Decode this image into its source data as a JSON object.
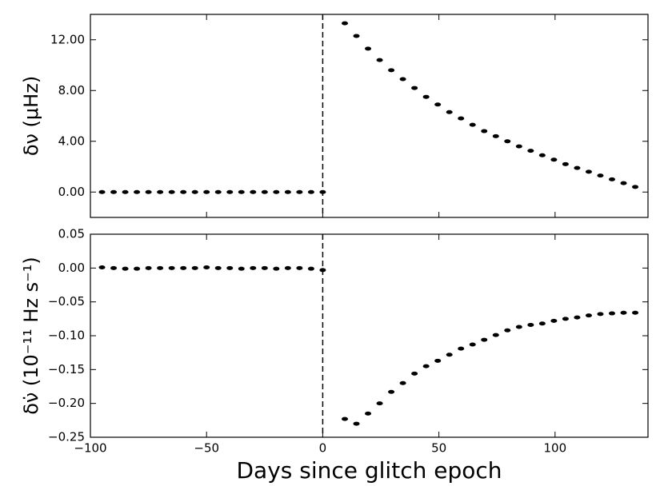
{
  "chart_data": [
    {
      "type": "scatter",
      "ylabel": "δν (μHz)",
      "color": "#000000",
      "x": [
        -95,
        -90,
        -85,
        -80,
        -75,
        -70,
        -65,
        -60,
        -55,
        -50,
        -45,
        -40,
        -35,
        -30,
        -25,
        -20,
        -15,
        -10,
        -5,
        0,
        9.5,
        14.5,
        19.5,
        24.5,
        29.5,
        34.5,
        39.5,
        44.5,
        49.5,
        54.5,
        59.5,
        64.5,
        69.5,
        74.5,
        79.5,
        84.5,
        89.5,
        94.5,
        99.5,
        104.5,
        109.5,
        114.5,
        119.5,
        124.5,
        129.5,
        134.5
      ],
      "values": [
        0,
        0,
        0,
        0,
        0,
        0,
        0,
        0,
        0,
        0,
        0,
        0,
        0,
        0,
        0,
        0,
        0,
        0,
        0,
        0,
        13.3,
        12.3,
        11.3,
        10.4,
        9.6,
        8.9,
        8.2,
        7.5,
        6.9,
        6.3,
        5.8,
        5.3,
        4.8,
        4.4,
        4.0,
        3.6,
        3.25,
        2.9,
        2.55,
        2.2,
        1.9,
        1.6,
        1.3,
        1.0,
        0.7,
        0.4
      ],
      "xlim": [
        -100,
        140
      ],
      "xticks": [
        -100,
        -50,
        0,
        50,
        100
      ],
      "xtick_labels": false,
      "ylim": [
        -2,
        14
      ],
      "yticks": [
        {
          "value": 0,
          "label": "0.00"
        },
        {
          "value": 4,
          "label": "4.00"
        },
        {
          "value": 8,
          "label": "8.00"
        },
        {
          "value": 12,
          "label": "12.00"
        }
      ],
      "vlines": [
        0
      ]
    },
    {
      "type": "scatter",
      "ylabel": "δν̇ (10⁻¹¹ Hz s⁻¹)",
      "xlabel": "Days since glitch epoch",
      "color": "#000000",
      "x": [
        -95,
        -90,
        -85,
        -80,
        -75,
        -70,
        -65,
        -60,
        -55,
        -50,
        -45,
        -40,
        -35,
        -30,
        -25,
        -20,
        -15,
        -10,
        -5,
        0,
        9.5,
        14.5,
        19.5,
        24.5,
        29.5,
        34.5,
        39.5,
        44.5,
        49.5,
        54.5,
        59.5,
        64.5,
        69.5,
        74.5,
        79.5,
        84.5,
        89.5,
        94.5,
        99.5,
        104.5,
        109.5,
        114.5,
        119.5,
        124.5,
        129.5,
        134.5
      ],
      "values": [
        0.001,
        0,
        -0.001,
        -0.001,
        0,
        0,
        0,
        0,
        0,
        0.001,
        0,
        0,
        -0.001,
        0,
        0,
        -0.001,
        0,
        0,
        -0.001,
        -0.003,
        -0.223,
        -0.23,
        -0.215,
        -0.2,
        -0.183,
        -0.17,
        -0.156,
        -0.145,
        -0.137,
        -0.128,
        -0.119,
        -0.113,
        -0.106,
        -0.099,
        -0.092,
        -0.087,
        -0.084,
        -0.082,
        -0.078,
        -0.075,
        -0.073,
        -0.07,
        -0.068,
        -0.067,
        -0.066,
        -0.066
      ],
      "xlim": [
        -100,
        140
      ],
      "xticks": [
        {
          "value": -100,
          "label": "−100"
        },
        {
          "value": -50,
          "label": "−50"
        },
        0,
        50,
        100
      ],
      "xtick_labels": true,
      "ylim": [
        -0.25,
        0.05
      ],
      "yticks": [
        {
          "value": -0.25,
          "label": "−0.25"
        },
        {
          "value": -0.2,
          "label": "−0.20"
        },
        {
          "value": -0.15,
          "label": "−0.15"
        },
        {
          "value": -0.1,
          "label": "−0.10"
        },
        {
          "value": -0.05,
          "label": "−0.05"
        },
        {
          "value": 0,
          "label": "0.00"
        },
        0.05
      ],
      "vlines": [
        0
      ]
    }
  ]
}
